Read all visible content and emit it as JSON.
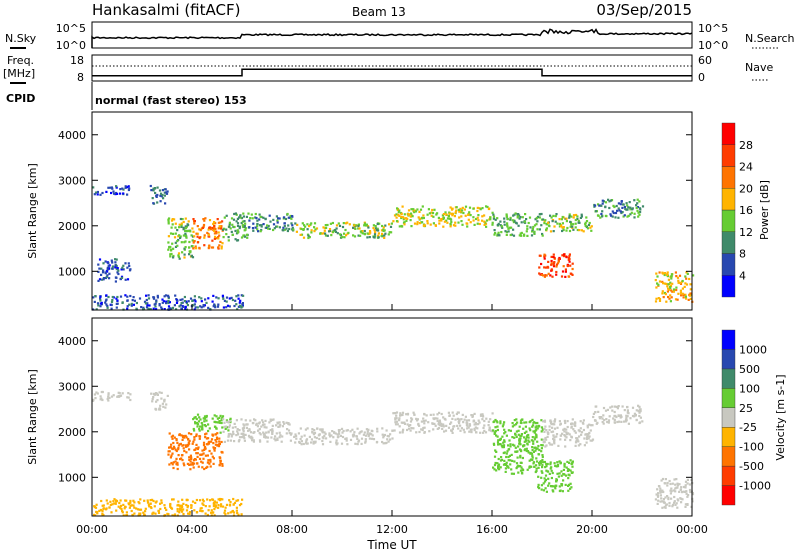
{
  "header": {
    "title": "Hankasalmi (fitACF)",
    "beam": "Beam 13",
    "date": "03/Sep/2015"
  },
  "noise_panel": {
    "left_label": "N.Sky",
    "right_label": "N.Search",
    "left_ticks": [
      "10^5",
      "10^0"
    ],
    "right_ticks": [
      "10^5",
      "10^0"
    ]
  },
  "freq_panel": {
    "left_label_1": "Freq.",
    "left_label_2": "[MHz]",
    "right_label": "Nave",
    "left_ticks": [
      "18",
      "8"
    ],
    "right_ticks": [
      "60",
      "0"
    ],
    "freq_steps": [
      {
        "from": 0,
        "to": 6,
        "level": 10
      },
      {
        "from": 6,
        "to": 18,
        "level": 12.5
      },
      {
        "from": 18,
        "to": 24,
        "level": 10
      }
    ]
  },
  "cpid": {
    "label": "CPID",
    "text": "normal (fast stereo) 153"
  },
  "chart_data": [
    {
      "type": "heatmap",
      "title": "Power",
      "xlabel": "",
      "ylabel": "Slant Range [km]",
      "xlim": [
        0,
        24
      ],
      "ylim": [
        150,
        4500
      ],
      "yticks": [
        "4000",
        "3000",
        "2000",
        "1000"
      ],
      "ytick_values": [
        4000,
        3000,
        2000,
        1000
      ],
      "colorbar": {
        "label": "Power [dB]",
        "ticks": [
          "28",
          "24",
          "20",
          "16",
          "12",
          "8",
          "4"
        ],
        "bounds": [
          0,
          4,
          8,
          12,
          16,
          20,
          24,
          28,
          32
        ],
        "colors": [
          "#0000ff",
          "#2848b0",
          "#3f8a6a",
          "#66cc33",
          "#ffb400",
          "#ff7400",
          "#ff3c00",
          "#ff0000"
        ]
      },
      "echo_bands": [
        {
          "t0": 0.0,
          "t1": 1.5,
          "r0": 2700,
          "r1": 2900,
          "value": 6
        },
        {
          "t0": 2.3,
          "t1": 3.0,
          "r0": 2500,
          "r1": 2900,
          "value": 8
        },
        {
          "t0": 3.0,
          "t1": 4.0,
          "r0": 1300,
          "r1": 2200,
          "value": 14
        },
        {
          "t0": 4.0,
          "t1": 5.2,
          "r0": 1500,
          "r1": 2200,
          "value": 22
        },
        {
          "t0": 5.2,
          "t1": 6.2,
          "r0": 1700,
          "r1": 2300,
          "value": 12
        },
        {
          "t0": 6.2,
          "t1": 8.0,
          "r0": 1900,
          "r1": 2300,
          "value": 10
        },
        {
          "t0": 8.0,
          "t1": 12.0,
          "r0": 1750,
          "r1": 2100,
          "value": 14
        },
        {
          "t0": 12.0,
          "t1": 16.0,
          "r0": 2000,
          "r1": 2450,
          "value": 16
        },
        {
          "t0": 16.0,
          "t1": 18.0,
          "r0": 1800,
          "r1": 2300,
          "value": 12
        },
        {
          "t0": 18.0,
          "t1": 20.0,
          "r0": 1900,
          "r1": 2300,
          "value": 14
        },
        {
          "t0": 17.8,
          "t1": 19.2,
          "r0": 900,
          "r1": 1400,
          "value": 26
        },
        {
          "t0": 20.0,
          "t1": 22.0,
          "r0": 2200,
          "r1": 2600,
          "value": 10
        },
        {
          "t0": 22.5,
          "t1": 24.0,
          "r0": 350,
          "r1": 1000,
          "value": 18
        },
        {
          "t0": 0.0,
          "t1": 6.0,
          "r0": 180,
          "r1": 500,
          "value": 6
        },
        {
          "t0": 0.2,
          "t1": 1.5,
          "r0": 800,
          "r1": 1300,
          "value": 6
        }
      ]
    },
    {
      "type": "heatmap",
      "title": "Velocity",
      "xlabel": "Time UT",
      "ylabel": "Slant Range [km]",
      "xlim": [
        0,
        24
      ],
      "ylim": [
        150,
        4500
      ],
      "xticks": [
        "00:00",
        "04:00",
        "08:00",
        "12:00",
        "16:00",
        "20:00",
        "00:00"
      ],
      "yticks": [
        "4000",
        "3000",
        "2000",
        "1000"
      ],
      "ytick_values": [
        4000,
        3000,
        2000,
        1000
      ],
      "colorbar": {
        "label": "Velocity [m s-1]",
        "ticks": [
          "1000",
          "500",
          "100",
          "25",
          "-25",
          "-100",
          "-500",
          "-1000"
        ],
        "colors": [
          "#0000ff",
          "#2848b0",
          "#3f8a6a",
          "#66cc33",
          "#c8c8c0",
          "#ffb400",
          "#ff7400",
          "#ff3c00",
          "#ff0000"
        ]
      },
      "echo_bands": [
        {
          "t0": 0.0,
          "t1": 1.5,
          "r0": 2700,
          "r1": 2900,
          "value": 0
        },
        {
          "t0": 2.3,
          "t1": 3.0,
          "r0": 2500,
          "r1": 2900,
          "value": 0
        },
        {
          "t0": 3.0,
          "t1": 5.2,
          "r0": 1200,
          "r1": 2000,
          "value": -300
        },
        {
          "t0": 4.0,
          "t1": 5.5,
          "r0": 2000,
          "r1": 2400,
          "value": 60
        },
        {
          "t0": 5.2,
          "t1": 8.0,
          "r0": 1800,
          "r1": 2300,
          "value": 0
        },
        {
          "t0": 8.0,
          "t1": 12.0,
          "r0": 1750,
          "r1": 2100,
          "value": 0
        },
        {
          "t0": 12.0,
          "t1": 16.0,
          "r0": 2000,
          "r1": 2450,
          "value": 0
        },
        {
          "t0": 16.0,
          "t1": 18.0,
          "r0": 1100,
          "r1": 2300,
          "value": 60
        },
        {
          "t0": 18.0,
          "t1": 20.0,
          "r0": 1700,
          "r1": 2300,
          "value": 0
        },
        {
          "t0": 17.8,
          "t1": 19.2,
          "r0": 700,
          "r1": 1400,
          "value": 60
        },
        {
          "t0": 20.0,
          "t1": 22.0,
          "r0": 2200,
          "r1": 2600,
          "value": 0
        },
        {
          "t0": 22.5,
          "t1": 24.0,
          "r0": 350,
          "r1": 1000,
          "value": 0
        },
        {
          "t0": 0.0,
          "t1": 6.0,
          "r0": 180,
          "r1": 550,
          "value": -60
        }
      ]
    }
  ]
}
